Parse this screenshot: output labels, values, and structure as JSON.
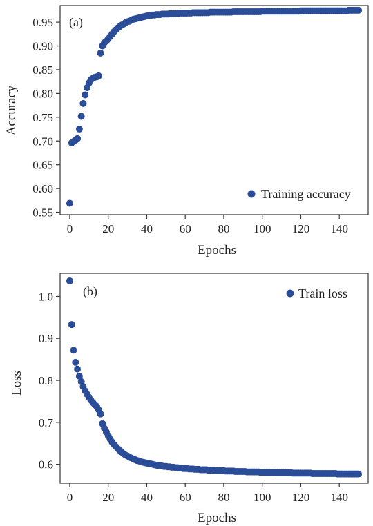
{
  "colors": {
    "marker": "#2b4c96"
  },
  "chart_data": [
    {
      "type": "scatter",
      "panel_label": "(a)",
      "xlabel": "Epochs",
      "ylabel": "Accuracy",
      "xlim": [
        -5,
        155
      ],
      "ylim": [
        0.545,
        0.985
      ],
      "xticks": [
        0,
        20,
        40,
        60,
        80,
        100,
        120,
        140
      ],
      "yticks": [
        0.55,
        0.6,
        0.65,
        0.7,
        0.75,
        0.8,
        0.85,
        0.9,
        0.95
      ],
      "ytick_labels": [
        "0.55",
        "0.60",
        "0.65",
        "0.70",
        "0.75",
        "0.80",
        "0.85",
        "0.90",
        "0.95"
      ],
      "grid": false,
      "legend_position": "lower-right",
      "series": [
        {
          "name": "Training accuracy",
          "x": [
            0,
            1,
            2,
            3,
            4,
            5,
            6,
            7,
            8,
            9,
            10,
            11,
            12,
            13,
            14,
            15,
            16,
            17,
            18,
            19,
            20,
            21,
            22,
            23,
            24,
            25,
            26,
            27,
            28,
            29,
            30,
            31,
            32,
            33,
            34,
            35,
            36,
            37,
            38,
            39,
            40,
            41,
            42,
            43,
            44,
            45,
            46,
            47,
            48,
            49,
            50,
            51,
            52,
            53,
            54,
            55,
            56,
            57,
            58,
            59,
            60,
            61,
            62,
            63,
            64,
            65,
            66,
            67,
            68,
            69,
            70,
            71,
            72,
            73,
            74,
            75,
            76,
            77,
            78,
            79,
            80,
            81,
            82,
            83,
            84,
            85,
            86,
            87,
            88,
            89,
            90,
            91,
            92,
            93,
            94,
            95,
            96,
            97,
            98,
            99,
            100,
            101,
            102,
            103,
            104,
            105,
            106,
            107,
            108,
            109,
            110,
            111,
            112,
            113,
            114,
            115,
            116,
            117,
            118,
            119,
            120,
            121,
            122,
            123,
            124,
            125,
            126,
            127,
            128,
            129,
            130,
            131,
            132,
            133,
            134,
            135,
            136,
            137,
            138,
            139,
            140,
            141,
            142,
            143,
            144,
            145,
            146,
            147,
            148,
            149,
            150
          ],
          "y": [
            0.569,
            0.696,
            0.699,
            0.702,
            0.705,
            0.725,
            0.752,
            0.779,
            0.797,
            0.812,
            0.822,
            0.829,
            0.832,
            0.834,
            0.835,
            0.837,
            0.885,
            0.9,
            0.907,
            0.91,
            0.915,
            0.92,
            0.925,
            0.93,
            0.934,
            0.938,
            0.941,
            0.944,
            0.946,
            0.949,
            0.951,
            0.952,
            0.954,
            0.956,
            0.957,
            0.958,
            0.959,
            0.96,
            0.961,
            0.962,
            0.963,
            0.964,
            0.964,
            0.965,
            0.965,
            0.966,
            0.966,
            0.966,
            0.967,
            0.967,
            0.967,
            0.967,
            0.968,
            0.968,
            0.968,
            0.968,
            0.968,
            0.969,
            0.969,
            0.969,
            0.969,
            0.969,
            0.969,
            0.969,
            0.97,
            0.97,
            0.97,
            0.97,
            0.97,
            0.97,
            0.97,
            0.97,
            0.97,
            0.971,
            0.971,
            0.971,
            0.971,
            0.971,
            0.971,
            0.971,
            0.971,
            0.971,
            0.971,
            0.971,
            0.971,
            0.972,
            0.972,
            0.972,
            0.972,
            0.972,
            0.972,
            0.972,
            0.972,
            0.972,
            0.972,
            0.972,
            0.972,
            0.972,
            0.972,
            0.972,
            0.973,
            0.973,
            0.973,
            0.973,
            0.973,
            0.973,
            0.973,
            0.973,
            0.973,
            0.973,
            0.973,
            0.973,
            0.973,
            0.973,
            0.973,
            0.973,
            0.973,
            0.973,
            0.973,
            0.973,
            0.974,
            0.974,
            0.974,
            0.974,
            0.974,
            0.974,
            0.974,
            0.974,
            0.974,
            0.974,
            0.974,
            0.974,
            0.974,
            0.974,
            0.974,
            0.974,
            0.974,
            0.974,
            0.974,
            0.974,
            0.974,
            0.974,
            0.974,
            0.974,
            0.974,
            0.975,
            0.975,
            0.975,
            0.975,
            0.975,
            0.975
          ]
        }
      ]
    },
    {
      "type": "scatter",
      "panel_label": "(b)",
      "xlabel": "Epochs",
      "ylabel": "Loss",
      "xlim": [
        -5,
        155
      ],
      "ylim": [
        0.555,
        1.055
      ],
      "xticks": [
        0,
        20,
        40,
        60,
        80,
        100,
        120,
        140
      ],
      "yticks": [
        0.6,
        0.7,
        0.8,
        0.9,
        1.0
      ],
      "ytick_labels": [
        "0.6",
        "0.7",
        "0.8",
        "0.9",
        "1.0"
      ],
      "grid": false,
      "legend_position": "upper-right",
      "series": [
        {
          "name": "Train loss",
          "x": [
            0,
            1,
            2,
            3,
            4,
            5,
            6,
            7,
            8,
            9,
            10,
            11,
            12,
            13,
            14,
            15,
            16,
            17,
            18,
            19,
            20,
            21,
            22,
            23,
            24,
            25,
            26,
            27,
            28,
            29,
            30,
            31,
            32,
            33,
            34,
            35,
            36,
            37,
            38,
            39,
            40,
            41,
            42,
            43,
            44,
            45,
            46,
            47,
            48,
            49,
            50,
            51,
            52,
            53,
            54,
            55,
            56,
            57,
            58,
            59,
            60,
            61,
            62,
            63,
            64,
            65,
            66,
            67,
            68,
            69,
            70,
            71,
            72,
            73,
            74,
            75,
            76,
            77,
            78,
            79,
            80,
            81,
            82,
            83,
            84,
            85,
            86,
            87,
            88,
            89,
            90,
            91,
            92,
            93,
            94,
            95,
            96,
            97,
            98,
            99,
            100,
            101,
            102,
            103,
            104,
            105,
            106,
            107,
            108,
            109,
            110,
            111,
            112,
            113,
            114,
            115,
            116,
            117,
            118,
            119,
            120,
            121,
            122,
            123,
            124,
            125,
            126,
            127,
            128,
            129,
            130,
            131,
            132,
            133,
            134,
            135,
            136,
            137,
            138,
            139,
            140,
            141,
            142,
            143,
            144,
            145,
            146,
            147,
            148,
            149,
            150
          ],
          "y": [
            1.037,
            0.933,
            0.872,
            0.843,
            0.827,
            0.81,
            0.797,
            0.785,
            0.775,
            0.767,
            0.76,
            0.753,
            0.747,
            0.742,
            0.738,
            0.73,
            0.72,
            0.697,
            0.686,
            0.677,
            0.668,
            0.66,
            0.653,
            0.647,
            0.642,
            0.637,
            0.633,
            0.629,
            0.625,
            0.622,
            0.62,
            0.617,
            0.615,
            0.613,
            0.611,
            0.609,
            0.608,
            0.606,
            0.605,
            0.604,
            0.603,
            0.602,
            0.601,
            0.6,
            0.599,
            0.598,
            0.597,
            0.597,
            0.596,
            0.595,
            0.595,
            0.594,
            0.594,
            0.593,
            0.593,
            0.592,
            0.592,
            0.591,
            0.591,
            0.59,
            0.59,
            0.59,
            0.589,
            0.589,
            0.589,
            0.588,
            0.588,
            0.588,
            0.587,
            0.587,
            0.587,
            0.587,
            0.586,
            0.586,
            0.586,
            0.586,
            0.585,
            0.585,
            0.585,
            0.585,
            0.585,
            0.584,
            0.584,
            0.584,
            0.584,
            0.584,
            0.583,
            0.583,
            0.583,
            0.583,
            0.583,
            0.583,
            0.582,
            0.582,
            0.582,
            0.582,
            0.582,
            0.582,
            0.582,
            0.581,
            0.581,
            0.581,
            0.581,
            0.581,
            0.581,
            0.581,
            0.58,
            0.58,
            0.58,
            0.58,
            0.58,
            0.58,
            0.58,
            0.58,
            0.58,
            0.58,
            0.579,
            0.579,
            0.579,
            0.579,
            0.579,
            0.579,
            0.579,
            0.579,
            0.579,
            0.579,
            0.578,
            0.578,
            0.578,
            0.578,
            0.578,
            0.578,
            0.578,
            0.578,
            0.578,
            0.578,
            0.578,
            0.578,
            0.578,
            0.577,
            0.577,
            0.577,
            0.577,
            0.577,
            0.577,
            0.577,
            0.577,
            0.577,
            0.577,
            0.577,
            0.577
          ]
        }
      ]
    }
  ]
}
